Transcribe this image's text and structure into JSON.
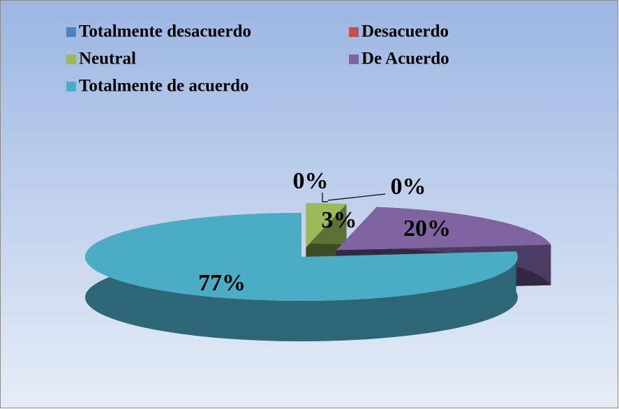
{
  "chart_data": {
    "type": "pie3d",
    "categories": [
      "Totalmente desacuerdo",
      "Desacuerdo",
      "Neutral",
      "De Acuerdo",
      "Totalmente de acuerdo"
    ],
    "values": [
      0,
      0,
      3,
      20,
      77
    ],
    "value_labels": [
      "0%",
      "0%",
      "3%",
      "20%",
      "77%"
    ],
    "colors": [
      "#4f81bd",
      "#c0504d",
      "#9bbb59",
      "#8064a2",
      "#4bacc6"
    ],
    "legend": "top"
  }
}
